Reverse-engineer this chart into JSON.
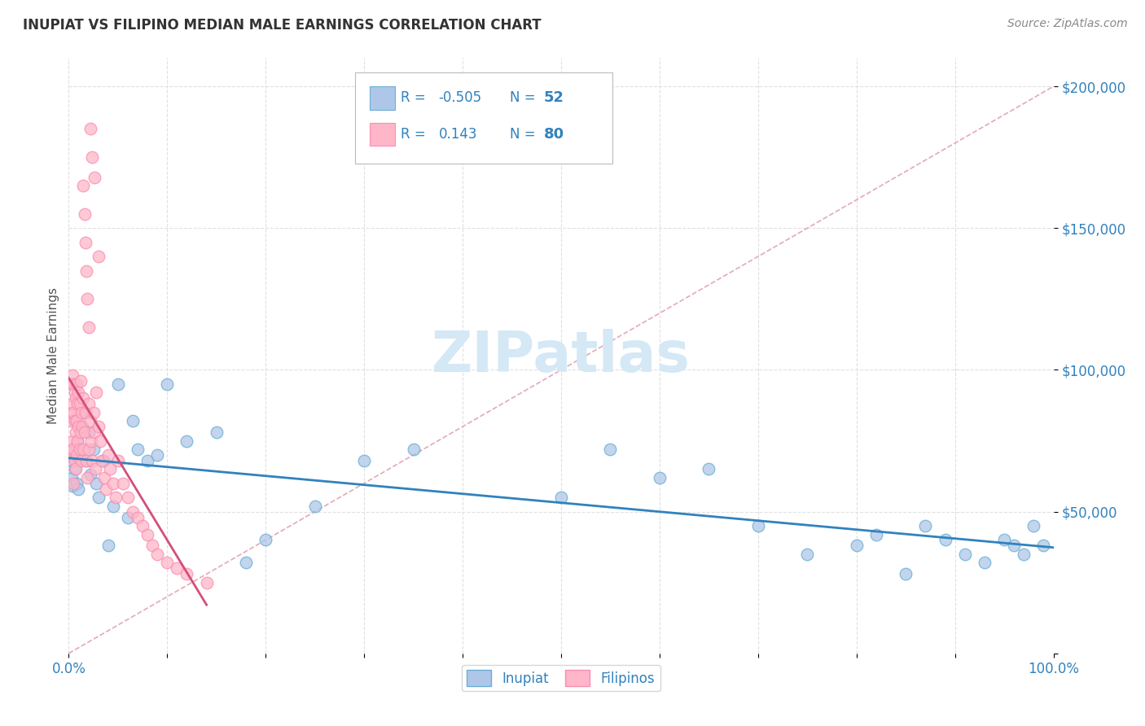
{
  "title": "INUPIAT VS FILIPINO MEDIAN MALE EARNINGS CORRELATION CHART",
  "source": "Source: ZipAtlas.com",
  "ylabel": "Median Male Earnings",
  "xlim": [
    0,
    1.0
  ],
  "ylim": [
    0,
    210000
  ],
  "inupiat_color": "#aec7e8",
  "filipino_color": "#ffb6c8",
  "inupiat_edge": "#6baed6",
  "filipino_edge": "#f78fb3",
  "inupiat_line_color": "#3182bd",
  "filipino_line_color": "#d44f7a",
  "diagonal_color": "#e0a0b0",
  "watermark_color": "#d4e8f5",
  "legend_text_color": "#3182bd",
  "title_color": "#333333",
  "source_color": "#888888",
  "ylabel_color": "#555555",
  "tick_color": "#3182bd",
  "inupiat_x": [
    0.002,
    0.003,
    0.004,
    0.005,
    0.006,
    0.007,
    0.008,
    0.009,
    0.01,
    0.012,
    0.015,
    0.018,
    0.02,
    0.022,
    0.025,
    0.028,
    0.03,
    0.035,
    0.04,
    0.045,
    0.05,
    0.06,
    0.065,
    0.07,
    0.08,
    0.09,
    0.1,
    0.12,
    0.15,
    0.18,
    0.2,
    0.25,
    0.3,
    0.35,
    0.5,
    0.55,
    0.6,
    0.65,
    0.7,
    0.75,
    0.8,
    0.82,
    0.85,
    0.87,
    0.89,
    0.91,
    0.93,
    0.95,
    0.96,
    0.97,
    0.98,
    0.99
  ],
  "inupiat_y": [
    68000,
    62000,
    59000,
    70000,
    65000,
    72000,
    60000,
    75000,
    58000,
    80000,
    85000,
    68000,
    78000,
    63000,
    72000,
    60000,
    55000,
    68000,
    38000,
    52000,
    95000,
    48000,
    82000,
    72000,
    68000,
    70000,
    95000,
    75000,
    78000,
    32000,
    40000,
    52000,
    68000,
    72000,
    55000,
    72000,
    62000,
    65000,
    45000,
    35000,
    38000,
    42000,
    28000,
    45000,
    40000,
    35000,
    32000,
    40000,
    38000,
    35000,
    45000,
    38000
  ],
  "filipino_x": [
    0.002,
    0.002,
    0.003,
    0.003,
    0.003,
    0.004,
    0.004,
    0.004,
    0.005,
    0.005,
    0.005,
    0.005,
    0.006,
    0.006,
    0.006,
    0.007,
    0.007,
    0.007,
    0.008,
    0.008,
    0.008,
    0.009,
    0.009,
    0.01,
    0.01,
    0.011,
    0.011,
    0.012,
    0.012,
    0.013,
    0.013,
    0.014,
    0.015,
    0.015,
    0.016,
    0.017,
    0.018,
    0.019,
    0.02,
    0.02,
    0.022,
    0.023,
    0.024,
    0.025,
    0.026,
    0.027,
    0.028,
    0.03,
    0.032,
    0.034,
    0.036,
    0.038,
    0.04,
    0.042,
    0.045,
    0.048,
    0.05,
    0.055,
    0.06,
    0.065,
    0.07,
    0.075,
    0.08,
    0.085,
    0.09,
    0.1,
    0.11,
    0.12,
    0.14,
    0.015,
    0.016,
    0.017,
    0.018,
    0.019,
    0.02,
    0.022,
    0.024,
    0.026,
    0.03
  ],
  "filipino_y": [
    82000,
    70000,
    95000,
    85000,
    72000,
    98000,
    88000,
    75000,
    95000,
    85000,
    72000,
    60000,
    92000,
    82000,
    68000,
    90000,
    78000,
    65000,
    95000,
    82000,
    70000,
    88000,
    75000,
    92000,
    80000,
    88000,
    72000,
    96000,
    78000,
    85000,
    68000,
    80000,
    90000,
    72000,
    78000,
    85000,
    68000,
    62000,
    88000,
    72000,
    82000,
    75000,
    68000,
    85000,
    78000,
    65000,
    92000,
    80000,
    75000,
    68000,
    62000,
    58000,
    70000,
    65000,
    60000,
    55000,
    68000,
    60000,
    55000,
    50000,
    48000,
    45000,
    42000,
    38000,
    35000,
    32000,
    30000,
    28000,
    25000,
    165000,
    155000,
    145000,
    135000,
    125000,
    115000,
    185000,
    175000,
    168000,
    140000
  ]
}
